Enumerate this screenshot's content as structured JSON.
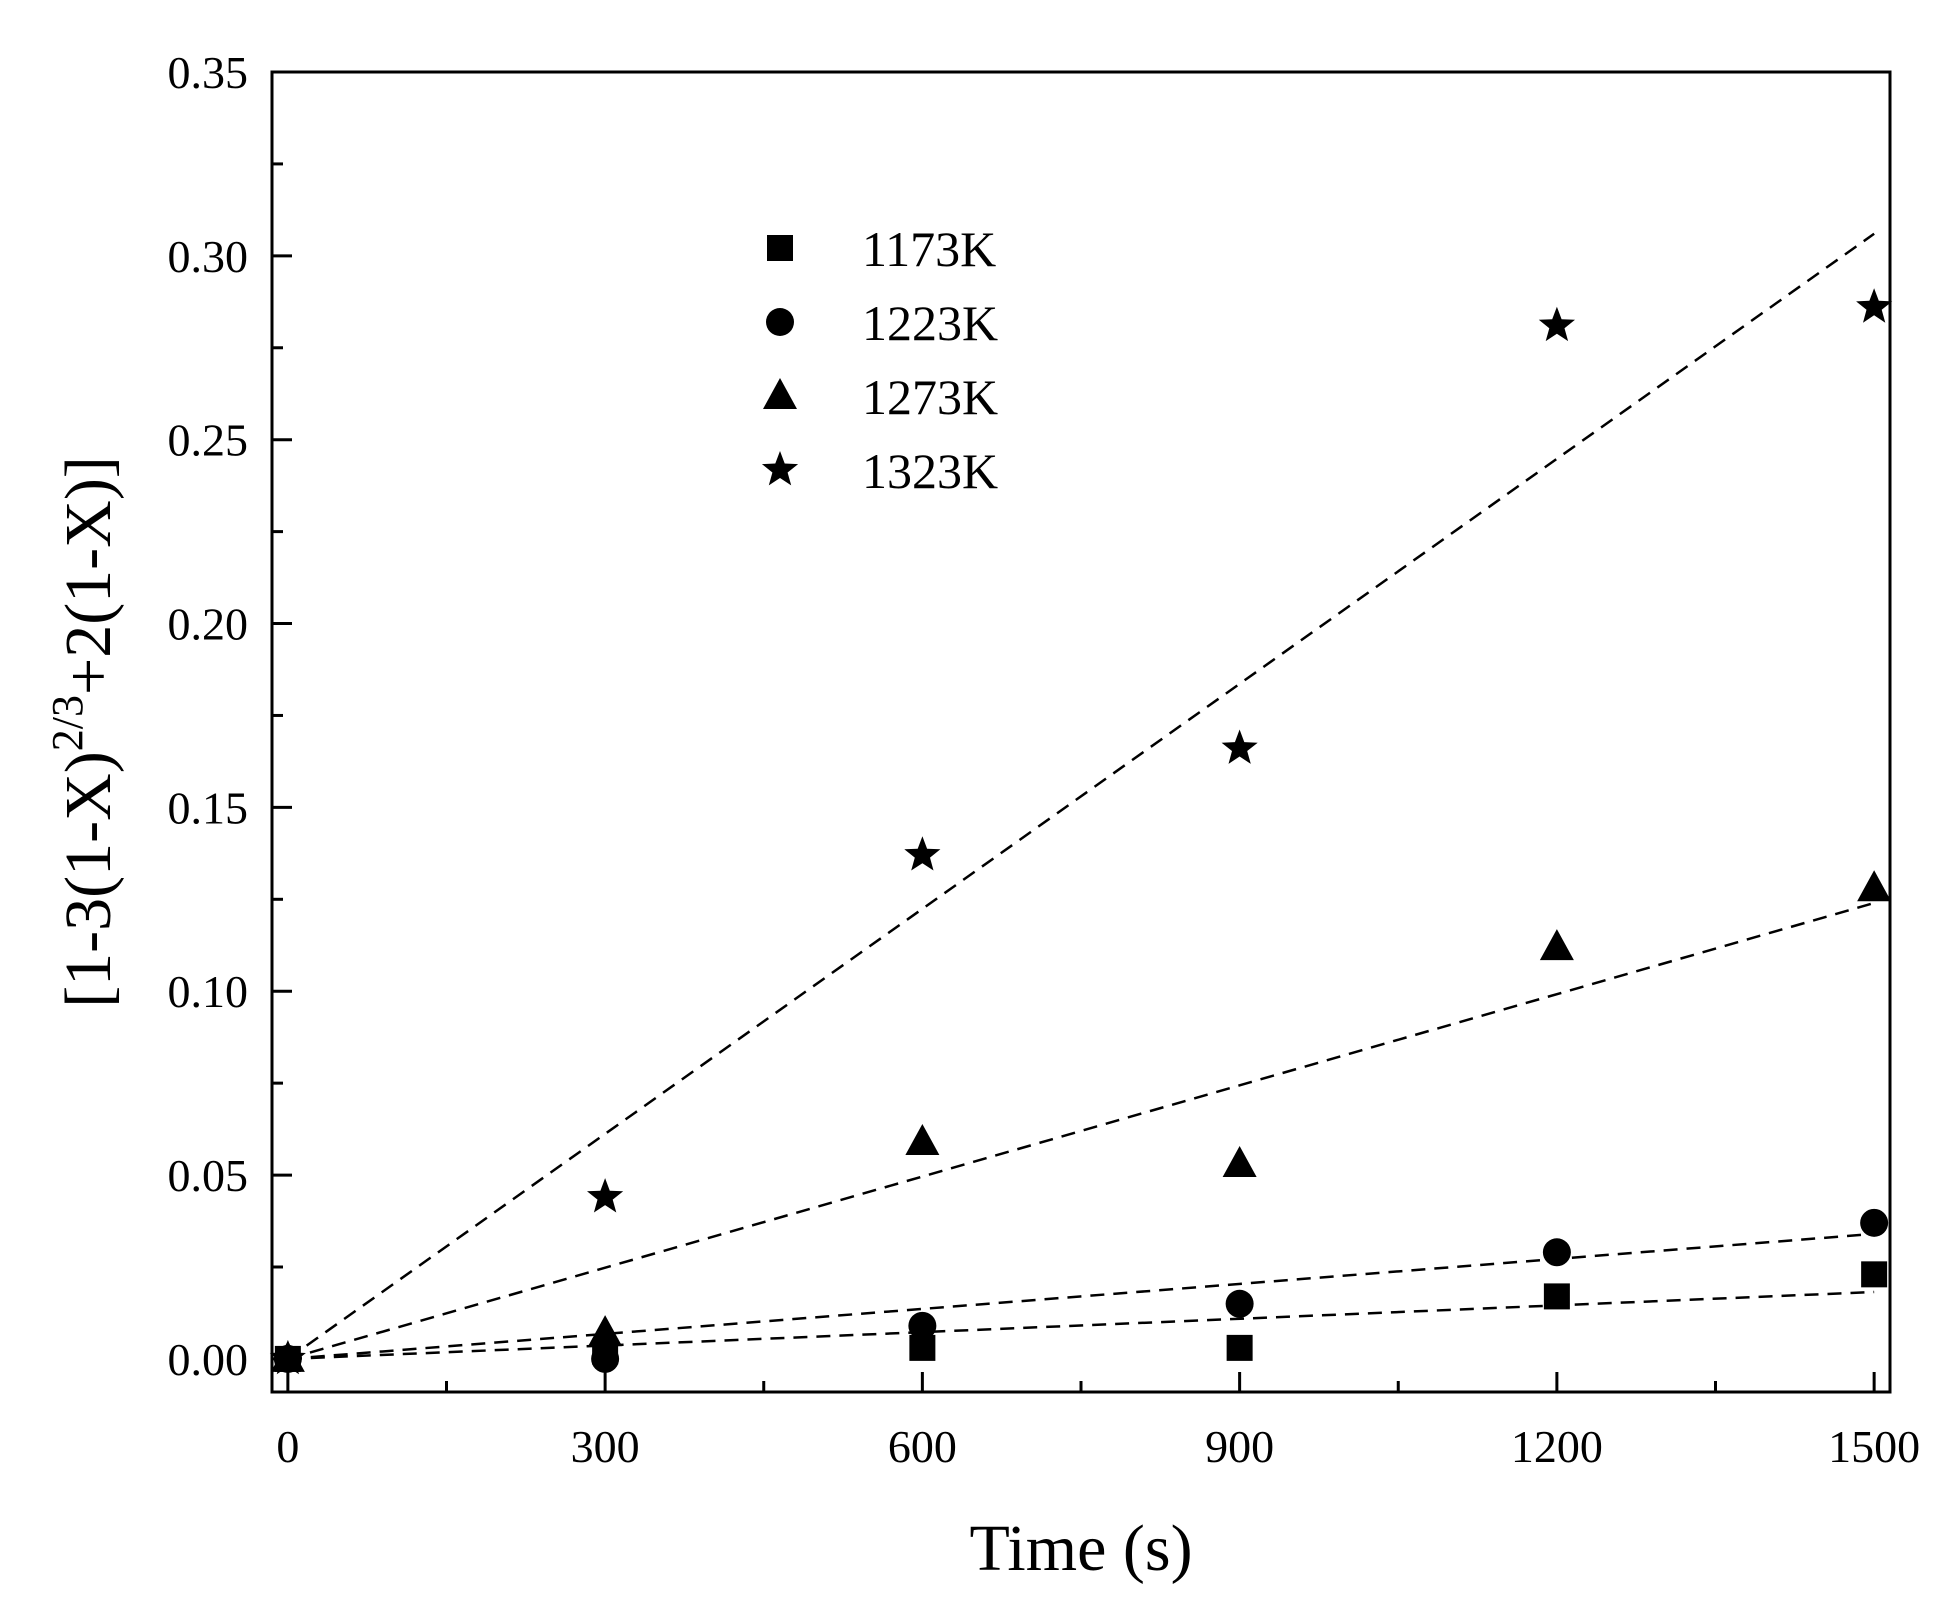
{
  "chart_data": {
    "type": "scatter",
    "title": "",
    "xlabel": "Time (s)",
    "ylabel": {
      "base": "[1-3(1-X)",
      "superscript": "2/3",
      "rest": "+2(1-X)]"
    },
    "xlim": [
      -15,
      1515
    ],
    "ylim": [
      -0.009,
      0.35
    ],
    "x_ticks": [
      0,
      300,
      600,
      900,
      1200,
      1500
    ],
    "x_tick_labels": [
      "0",
      "300",
      "600",
      "900",
      "1200",
      "1500"
    ],
    "y_ticks": [
      0.0,
      0.05,
      0.1,
      0.15,
      0.2,
      0.25,
      0.3,
      0.35
    ],
    "y_tick_labels": [
      "0.00",
      "0.05",
      "0.10",
      "0.15",
      "0.20",
      "0.25",
      "0.30",
      "0.35"
    ],
    "grid": false,
    "legend_position": "top-center",
    "x": [
      0,
      300,
      600,
      900,
      1200,
      1500
    ],
    "series": [
      {
        "name": "1173K",
        "marker": "square",
        "values": [
          0.0,
          0.002,
          0.003,
          0.003,
          0.017,
          0.023
        ],
        "fit": [
          0.0,
          0.0182
        ]
      },
      {
        "name": "1223K",
        "marker": "circle",
        "values": [
          0.0,
          0.0,
          0.009,
          0.015,
          0.029,
          0.037
        ],
        "fit": [
          0.0,
          0.034
        ]
      },
      {
        "name": "1273K",
        "marker": "triangle",
        "values": [
          0.0,
          0.007,
          0.059,
          0.053,
          0.112,
          0.128
        ],
        "fit": [
          0.0,
          0.124
        ]
      },
      {
        "name": "1323K",
        "marker": "star",
        "values": [
          0.0,
          0.044,
          0.137,
          0.166,
          0.281,
          0.286
        ],
        "fit": [
          0.0,
          0.306
        ]
      }
    ]
  }
}
